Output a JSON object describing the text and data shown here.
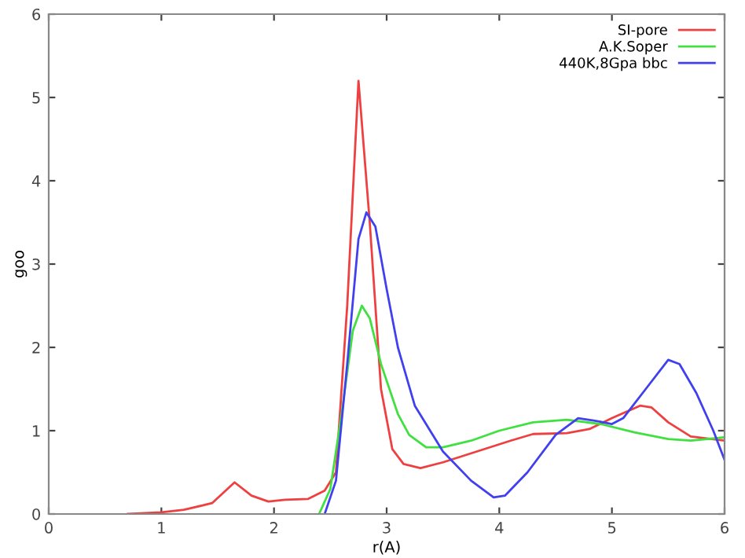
{
  "chart_data": {
    "type": "line",
    "xlabel": "r(A)",
    "ylabel": "goo",
    "xlim": [
      0,
      6
    ],
    "ylim": [
      0,
      6
    ],
    "xticks": [
      0,
      1,
      2,
      3,
      4,
      5,
      6
    ],
    "yticks": [
      0,
      1,
      2,
      3,
      4,
      5,
      6
    ],
    "grid": false,
    "legend": "top right",
    "marker": "none",
    "line_style": "solid",
    "series": [
      {
        "name": "SI-pore",
        "color": "#ee4040",
        "x": [
          0.7,
          1.0,
          1.2,
          1.45,
          1.65,
          1.8,
          1.95,
          2.1,
          2.3,
          2.45,
          2.55,
          2.65,
          2.75,
          2.85,
          2.95,
          3.05,
          3.15,
          3.3,
          3.5,
          3.8,
          4.1,
          4.3,
          4.6,
          4.8,
          5.0,
          5.25,
          5.35,
          5.5,
          5.7,
          6.0
        ],
        "values": [
          0,
          0.02,
          0.05,
          0.13,
          0.38,
          0.22,
          0.15,
          0.17,
          0.18,
          0.28,
          0.5,
          2.5,
          5.2,
          3.5,
          1.5,
          0.78,
          0.6,
          0.55,
          0.62,
          0.75,
          0.88,
          0.96,
          0.97,
          1.02,
          1.15,
          1.3,
          1.28,
          1.1,
          0.93,
          0.88
        ]
      },
      {
        "name": "A.K.Soper",
        "color": "#40e040",
        "x": [
          2.4,
          2.5,
          2.6,
          2.7,
          2.78,
          2.85,
          2.95,
          3.1,
          3.2,
          3.35,
          3.5,
          3.75,
          4.0,
          4.3,
          4.6,
          4.9,
          5.2,
          5.5,
          5.7,
          6.0
        ],
        "values": [
          0,
          0.3,
          1.2,
          2.2,
          2.5,
          2.35,
          1.8,
          1.2,
          0.95,
          0.8,
          0.8,
          0.88,
          1.0,
          1.1,
          1.13,
          1.08,
          0.98,
          0.9,
          0.88,
          0.92
        ]
      },
      {
        "name": "440K,8Gpa bbc",
        "color": "#4040ee",
        "x": [
          2.45,
          2.55,
          2.65,
          2.75,
          2.82,
          2.9,
          3.0,
          3.1,
          3.25,
          3.5,
          3.75,
          3.95,
          4.05,
          4.25,
          4.5,
          4.7,
          4.85,
          5.0,
          5.1,
          5.3,
          5.5,
          5.6,
          5.75,
          5.9,
          6.0
        ],
        "values": [
          0,
          0.4,
          1.8,
          3.3,
          3.62,
          3.45,
          2.7,
          2.0,
          1.3,
          0.75,
          0.4,
          0.2,
          0.22,
          0.5,
          0.95,
          1.15,
          1.12,
          1.08,
          1.15,
          1.5,
          1.85,
          1.8,
          1.45,
          1.0,
          0.65
        ]
      }
    ]
  }
}
